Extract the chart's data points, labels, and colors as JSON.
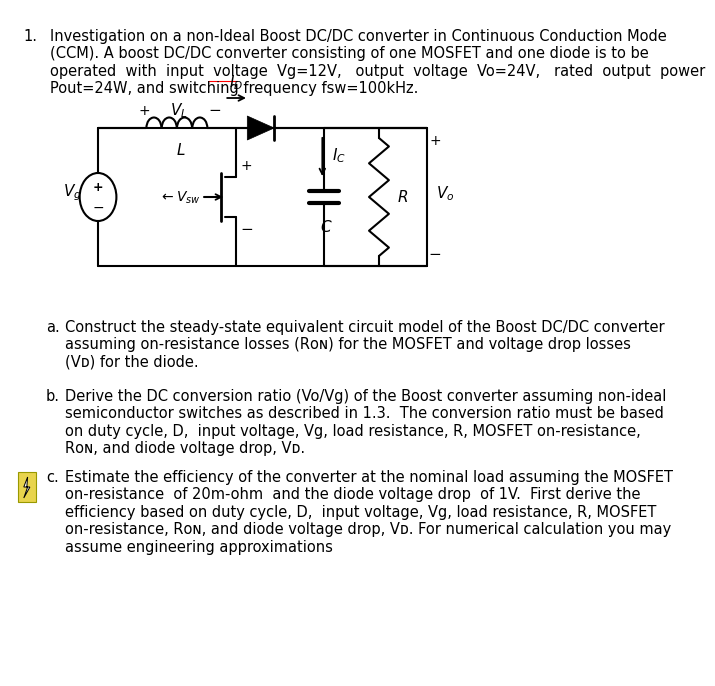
{
  "bg_color": "#ffffff",
  "text_color": "#000000",
  "lc": "#000000",
  "lw": 1.5,
  "fs_main": 10.5,
  "fs_sub": 10.5,
  "fs_circuit": 11,
  "main_line1": "Investigation on a non-Ideal Boost DC/DC converter in Continuous Conduction Mode",
  "main_line2": "(CCM). A boost DC/DC converter consisting of one MOSFET and one diode is to be",
  "main_line3": "operated  with  input  voltage  Vg=12V,   output  voltage  Vo=24V,   rated  output  power",
  "main_line4": "Pout=24W, and switching frequency fsw=100kHz.",
  "sub_a_label": "a.",
  "sub_a_lines": [
    "Construct the steady-state equivalent circuit model of the Boost DC/DC converter",
    "assuming on-resistance losses (Rᴏɴ) for the MOSFET and voltage drop losses",
    "(Vᴅ) for the diode."
  ],
  "sub_b_label": "b.",
  "sub_b_lines": [
    "Derive the DC conversion ratio (Vo/Vg) of the Boost converter assuming non-ideal",
    "semiconductor switches as described in 1.3.  The conversion ratio must be based",
    "on duty cycle, D,  input voltage, Vg, load resistance, R, MOSFET on-resistance,",
    "Rᴏɴ, and diode voltage drop, Vᴅ."
  ],
  "sub_c_label": "c.",
  "sub_c_lines": [
    "Estimate the efficiency of the converter at the nominal load assuming the MOSFET",
    "on-resistance  of 20m-ohm  and the diode voltage drop  of 1V.  First derive the",
    "efficiency based on duty cycle, D,  input voltage, Vg, load resistance, R, MOSFET",
    "on-resistance, Rᴏɴ, and diode voltage drop, Vᴅ. For numerical calculation you may",
    "assume engineering approximations"
  ],
  "icon_color": "#e8d44d",
  "icon_border": "#999900",
  "icon_line": "#555500"
}
